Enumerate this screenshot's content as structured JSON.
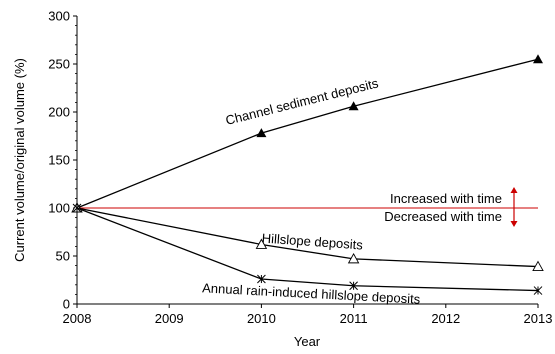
{
  "chart_data": {
    "type": "line",
    "xlabel": "Year",
    "ylabel": "Current volume/original volume (%)",
    "xlim": [
      2008,
      2013
    ],
    "ylim": [
      0,
      300
    ],
    "x_ticks": [
      "2008",
      "2009",
      "2010",
      "2011",
      "2012",
      "2013"
    ],
    "y_ticks": [
      "0",
      "50",
      "100",
      "150",
      "200",
      "250",
      "300"
    ],
    "grid": false,
    "series": [
      {
        "name": "Channel sediment deposits",
        "marker": "filled-triangle",
        "color": "#000000",
        "x": [
          2008,
          2010,
          2011,
          2013
        ],
        "y": [
          100,
          178,
          206,
          255
        ]
      },
      {
        "name": "Hillslope deposits",
        "marker": "open-triangle",
        "color": "#000000",
        "x": [
          2008,
          2010,
          2011,
          2013
        ],
        "y": [
          100,
          62,
          47,
          39
        ]
      },
      {
        "name": "Annual rain-induced hillslope deposits",
        "marker": "asterisk",
        "color": "#000000",
        "x": [
          2008,
          2010,
          2011,
          2013
        ],
        "y": [
          100,
          26,
          19,
          14
        ]
      }
    ],
    "reference_line": {
      "y": 100,
      "color": "#cc0000"
    },
    "annotations": {
      "increased": "Increased with time",
      "decreased": "Decreased with time"
    }
  }
}
